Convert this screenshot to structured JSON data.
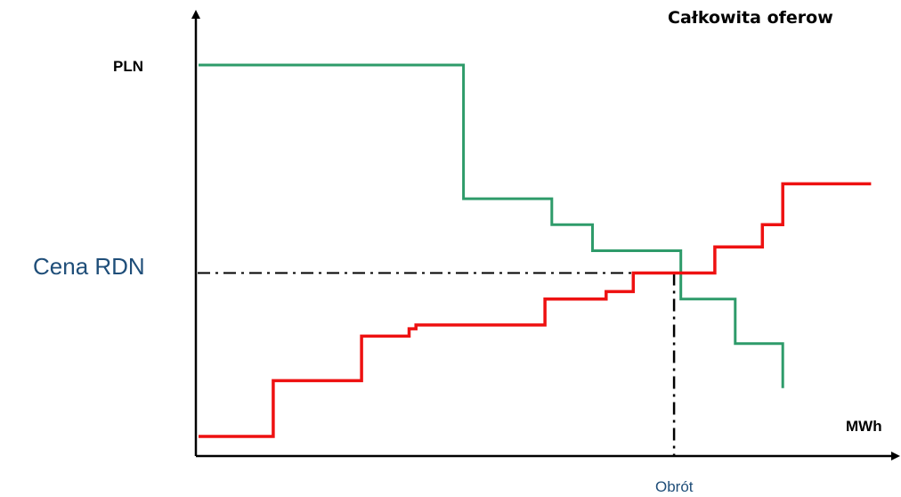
{
  "chart_data": {
    "type": "line",
    "title": "Całkowita oferow",
    "ylabel": "PLN",
    "xlabel": "MWh",
    "price_label": "Cena RDN",
    "volume_label": "Obrót",
    "grid": false,
    "legend": "none",
    "xlim": [
      0,
      100
    ],
    "ylim": [
      0,
      100
    ],
    "series": [
      {
        "color": "#2e9b6a",
        "step_x": [
          0,
          39,
          39,
          52,
          52,
          58,
          58,
          71,
          71,
          79,
          79,
          86,
          86
        ],
        "step_y": [
          100,
          100,
          64,
          64,
          57,
          57,
          50,
          50,
          37,
          37,
          25,
          25,
          13
        ]
      },
      {
        "color": "#ee1111",
        "step_x": [
          0,
          11,
          11,
          24,
          24,
          31,
          31,
          32,
          32,
          51,
          51,
          60,
          60,
          64,
          64,
          76,
          76,
          83,
          83,
          86,
          86,
          99
        ],
        "step_y": [
          0,
          0,
          15,
          15,
          27,
          27,
          29,
          29,
          30,
          30,
          37,
          37,
          39,
          39,
          44,
          44,
          51,
          51,
          57,
          57,
          68,
          68
        ]
      }
    ],
    "equilibrium": {
      "x": 70,
      "y": 44
    }
  },
  "colors": {
    "axis": "#000000",
    "guide": "#000000",
    "accent_text": "#1f4e79"
  }
}
